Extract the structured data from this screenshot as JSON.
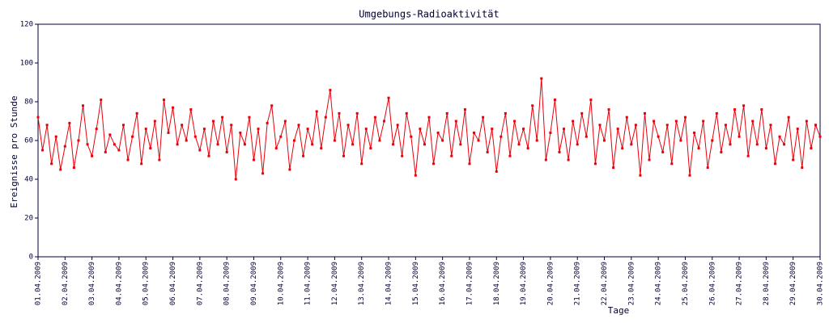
{
  "chart_data": {
    "type": "line",
    "title": "Umgebungs-Radioaktivität",
    "ylabel": "Ereignisse pro Stunde",
    "xlabel": "Tage",
    "color": "#e8000b",
    "x": [
      0,
      4,
      8,
      12,
      16,
      20,
      24,
      28,
      32,
      36,
      40,
      44,
      48,
      52,
      56,
      60,
      64,
      68,
      72,
      76,
      80,
      84,
      88,
      92,
      96,
      100,
      104,
      108,
      112,
      116,
      120,
      124,
      128,
      132,
      136,
      140,
      144,
      148,
      152,
      156,
      160,
      164,
      168,
      172,
      176,
      180,
      184,
      188,
      192,
      196,
      200,
      204,
      208,
      212,
      216,
      220,
      224,
      228,
      232,
      236,
      240,
      244,
      248,
      252,
      256,
      260,
      264,
      268,
      272,
      276,
      280,
      284,
      288,
      292,
      296,
      300,
      304,
      308,
      312,
      316,
      320,
      324,
      328,
      332,
      336,
      340,
      344,
      348,
      352,
      356,
      360,
      364,
      368,
      372,
      376,
      380,
      384,
      388,
      392,
      396,
      400,
      404,
      408,
      412,
      416,
      420,
      424,
      428,
      432,
      436,
      440,
      444,
      448,
      452,
      456,
      460,
      464,
      468,
      472,
      476,
      480,
      484,
      488,
      492,
      496,
      500,
      504,
      508,
      512,
      516,
      520,
      524,
      528,
      532,
      536,
      540,
      544,
      548,
      552,
      556,
      560,
      564,
      568,
      572,
      576,
      580,
      584,
      588,
      592,
      596,
      600,
      604,
      608,
      612,
      616,
      620,
      624,
      628,
      632,
      636,
      640,
      644,
      648,
      652,
      656,
      660,
      664,
      668,
      672,
      676,
      680,
      684,
      688,
      692,
      696
    ],
    "values": [
      72,
      55,
      68,
      48,
      62,
      45,
      57,
      69,
      46,
      60,
      78,
      58,
      52,
      66,
      81,
      54,
      63,
      58,
      55,
      68,
      50,
      62,
      74,
      48,
      66,
      56,
      70,
      50,
      81,
      64,
      77,
      58,
      68,
      60,
      76,
      62,
      55,
      66,
      52,
      70,
      58,
      72,
      54,
      68,
      40,
      64,
      58,
      72,
      50,
      66,
      43,
      69,
      78,
      56,
      62,
      70,
      45,
      60,
      68,
      52,
      66,
      58,
      75,
      56,
      72,
      86,
      60,
      74,
      52,
      68,
      58,
      74,
      48,
      66,
      56,
      72,
      60,
      70,
      82,
      58,
      68,
      52,
      74,
      62,
      42,
      66,
      58,
      72,
      48,
      64,
      60,
      74,
      52,
      70,
      58,
      76,
      48,
      64,
      60,
      72,
      54,
      66,
      44,
      62,
      74,
      52,
      70,
      58,
      66,
      56,
      78,
      60,
      92,
      50,
      64,
      81,
      54,
      66,
      50,
      70,
      58,
      74,
      62,
      81,
      48,
      68,
      60,
      76,
      46,
      66,
      56,
      72,
      58,
      68,
      42,
      74,
      50,
      70,
      62,
      54,
      68,
      48,
      70,
      60,
      72,
      42,
      64,
      56,
      70,
      46,
      60,
      74,
      54,
      68,
      58,
      76,
      62,
      78,
      52,
      70,
      58,
      76,
      56,
      68,
      48,
      62,
      58,
      72,
      50,
      66,
      46,
      70,
      56,
      68,
      62
    ],
    "xlim": [
      0,
      696
    ],
    "xticks": [
      {
        "value": 0,
        "label": "01.04.2009"
      },
      {
        "value": 24,
        "label": "02.04.2009"
      },
      {
        "value": 48,
        "label": "03.04.2009"
      },
      {
        "value": 72,
        "label": "04.04.2009"
      },
      {
        "value": 96,
        "label": "05.04.2009"
      },
      {
        "value": 120,
        "label": "06.04.2009"
      },
      {
        "value": 144,
        "label": "07.04.2009"
      },
      {
        "value": 168,
        "label": "08.04.2009"
      },
      {
        "value": 192,
        "label": "09.04.2009"
      },
      {
        "value": 216,
        "label": "10.04.2009"
      },
      {
        "value": 240,
        "label": "11.04.2009"
      },
      {
        "value": 264,
        "label": "12.04.2009"
      },
      {
        "value": 288,
        "label": "13.04.2009"
      },
      {
        "value": 312,
        "label": "14.04.2009"
      },
      {
        "value": 336,
        "label": "15.04.2009"
      },
      {
        "value": 360,
        "label": "16.04.2009"
      },
      {
        "value": 384,
        "label": "17.04.2009"
      },
      {
        "value": 408,
        "label": "18.04.2009"
      },
      {
        "value": 432,
        "label": "19.04.2009"
      },
      {
        "value": 456,
        "label": "20.04.2009"
      },
      {
        "value": 480,
        "label": "21.04.2009"
      },
      {
        "value": 504,
        "label": "22.04.2009"
      },
      {
        "value": 528,
        "label": "23.04.2009"
      },
      {
        "value": 552,
        "label": "24.04.2009"
      },
      {
        "value": 576,
        "label": "25.04.2009"
      },
      {
        "value": 600,
        "label": "26.04.2009"
      },
      {
        "value": 624,
        "label": "27.04.2009"
      },
      {
        "value": 648,
        "label": "28.04.2009"
      },
      {
        "value": 672,
        "label": "29.04.2009"
      },
      {
        "value": 696,
        "label": "30.04.2009"
      }
    ],
    "ylim": [
      0,
      120
    ],
    "yticks": [
      0,
      20,
      40,
      60,
      80,
      100,
      120
    ]
  }
}
